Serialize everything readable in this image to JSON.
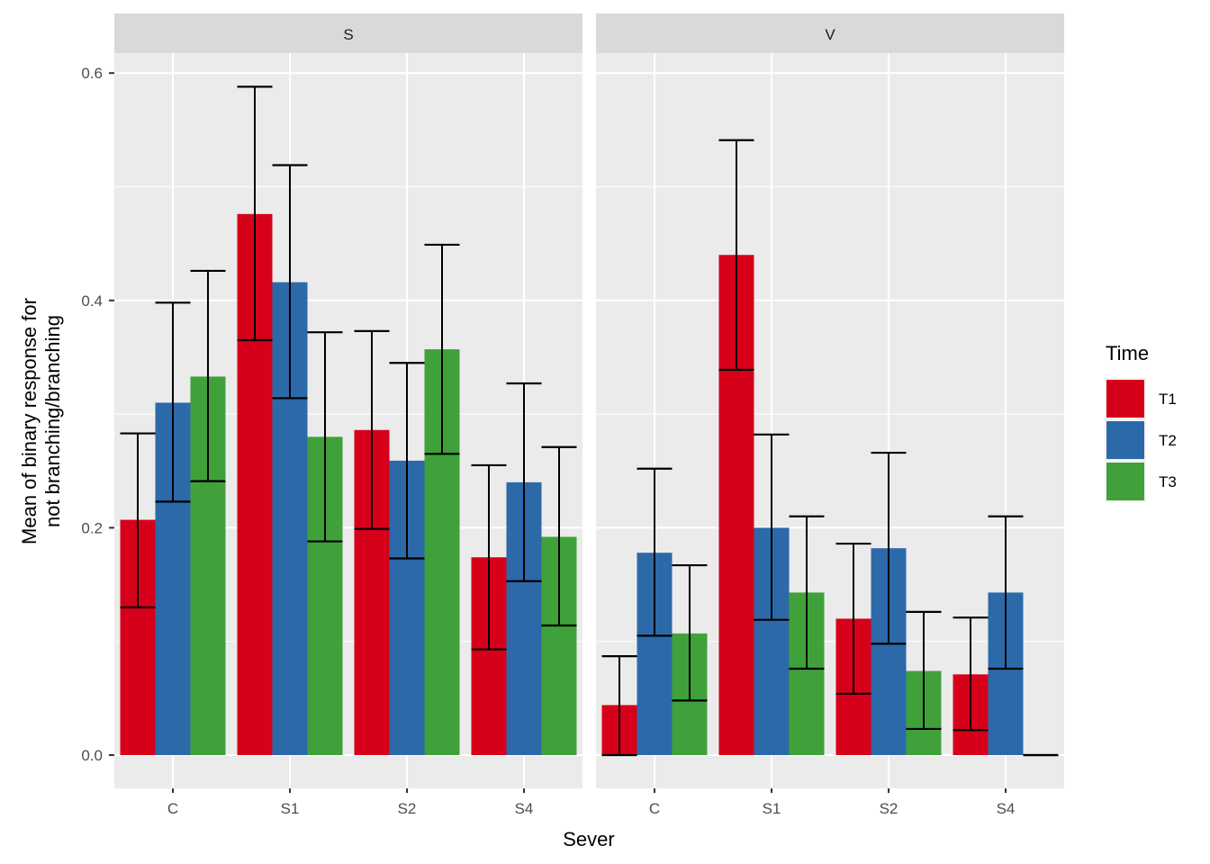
{
  "chart_data": {
    "type": "bar",
    "subtype": "grouped-bar-with-errorbars-faceted",
    "xlabel": "Sever",
    "ylabel_lines": [
      "Mean of binary response for",
      "not branching/branching"
    ],
    "ylim": [
      -0.026,
      0.627
    ],
    "yticks": [
      0.0,
      0.2,
      0.4,
      0.6
    ],
    "ytick_labels": [
      "0.0",
      "0.2",
      "0.4",
      "0.6"
    ],
    "grid": true,
    "categories": [
      "C",
      "S1",
      "S2",
      "S4"
    ],
    "legend": {
      "title": "Time",
      "position": "right",
      "entries": [
        {
          "name": "T1",
          "color": "#D7001A"
        },
        {
          "name": "T2",
          "color": "#2C69A9"
        },
        {
          "name": "T3",
          "color": "#40A13A"
        }
      ]
    },
    "facets": [
      {
        "label": "S",
        "series": [
          {
            "name": "T1",
            "values": [
              0.207,
              0.476,
              0.286,
              0.174
            ],
            "lower": [
              0.13,
              0.365,
              0.199,
              0.093
            ],
            "upper": [
              0.283,
              0.588,
              0.373,
              0.255
            ]
          },
          {
            "name": "T2",
            "values": [
              0.31,
              0.416,
              0.259,
              0.24
            ],
            "lower": [
              0.223,
              0.314,
              0.173,
              0.153
            ],
            "upper": [
              0.398,
              0.519,
              0.345,
              0.327
            ]
          },
          {
            "name": "T3",
            "values": [
              0.333,
              0.28,
              0.357,
              0.192
            ],
            "lower": [
              0.241,
              0.188,
              0.265,
              0.114
            ],
            "upper": [
              0.426,
              0.372,
              0.449,
              0.271
            ]
          }
        ]
      },
      {
        "label": "V",
        "series": [
          {
            "name": "T1",
            "values": [
              0.044,
              0.44,
              0.12,
              0.071
            ],
            "lower": [
              0.0,
              0.339,
              0.054,
              0.022
            ],
            "upper": [
              0.087,
              0.541,
              0.186,
              0.121
            ]
          },
          {
            "name": "T2",
            "values": [
              0.178,
              0.2,
              0.182,
              0.143
            ],
            "lower": [
              0.105,
              0.119,
              0.098,
              0.076
            ],
            "upper": [
              0.252,
              0.282,
              0.266,
              0.21
            ]
          },
          {
            "name": "T3",
            "values": [
              0.107,
              0.143,
              0.074,
              0.0
            ],
            "lower": [
              0.048,
              0.076,
              0.023,
              0.0
            ],
            "upper": [
              0.167,
              0.21,
              0.126,
              0.0
            ]
          }
        ]
      }
    ]
  }
}
